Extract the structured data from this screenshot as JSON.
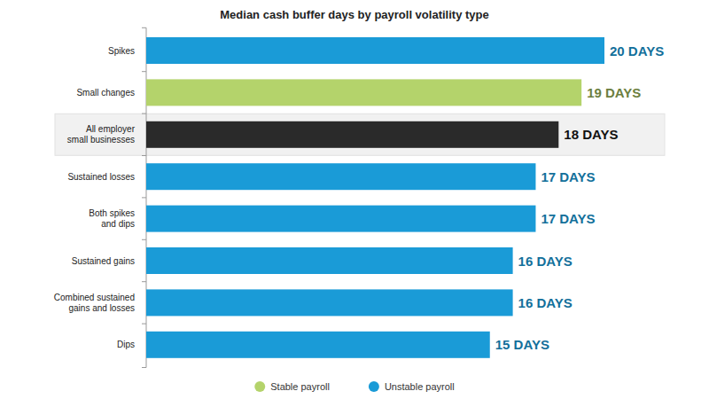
{
  "chart_data": {
    "type": "bar",
    "orientation": "horizontal",
    "title": "Median cash buffer days by payroll volatility type",
    "categories": [
      "Spikes",
      "Small changes",
      "All employer small businesses",
      "Sustained losses",
      "Both spikes and dips",
      "Sustained gains",
      "Combined sustained gains and losses",
      "Dips"
    ],
    "series": [
      {
        "name": "Stable payroll",
        "color": "#b4d36b",
        "values": [
          null,
          19,
          null,
          null,
          null,
          null,
          null,
          null
        ],
        "value_labels": [
          null,
          "19 DAYS",
          null,
          null,
          null,
          null,
          null,
          null
        ]
      },
      {
        "color": "#2a2a2a",
        "values": [
          null,
          null,
          18,
          null,
          null,
          null,
          null,
          null
        ],
        "value_labels": [
          null,
          null,
          "18 DAYS",
          null,
          null,
          null,
          null,
          null
        ]
      },
      {
        "name": "Unstable payroll",
        "color": "#1a9bd7",
        "values": [
          20,
          null,
          null,
          17,
          17,
          16,
          16,
          15
        ],
        "value_labels": [
          "20 DAYS",
          null,
          null,
          "17 DAYS",
          "17 DAYS",
          "16 DAYS",
          "16 DAYS",
          "15 DAYS"
        ]
      }
    ],
    "xlim": [
      0,
      20
    ],
    "data_labels": true,
    "tick_labels": "y",
    "legend": "bottom"
  }
}
